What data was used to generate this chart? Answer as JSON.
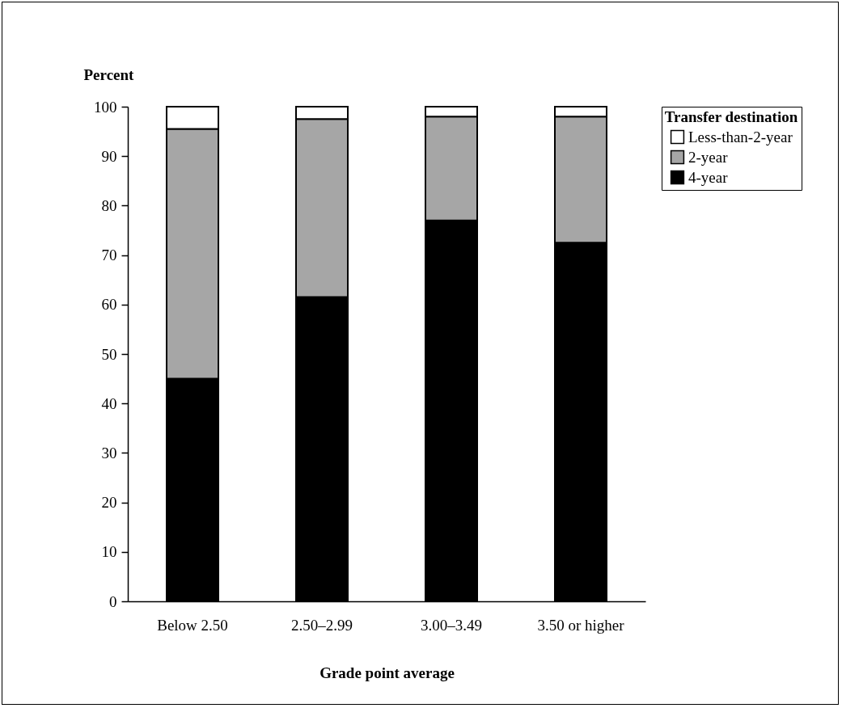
{
  "chart_data": {
    "type": "bar",
    "xlabel": "Grade point average",
    "ylabel": "Percent",
    "legend_title": "Transfer destination",
    "categories": [
      "Below 2.50",
      "2.50–2.99",
      "3.00–3.49",
      "3.50 or higher"
    ],
    "stacked": true,
    "ylim": [
      0,
      100
    ],
    "yticks": [
      0,
      10,
      20,
      30,
      40,
      50,
      60,
      70,
      80,
      90,
      100
    ],
    "legend": "right",
    "series": [
      {
        "name": "4-year",
        "color": "#000000",
        "values": [
          45,
          61.5,
          77,
          72.5
        ]
      },
      {
        "name": "2-year",
        "color": "#a6a6a6",
        "values": [
          50.5,
          36,
          21,
          25.5
        ]
      },
      {
        "name": "Less-than-2-year",
        "color": "#ffffff",
        "values": [
          4.5,
          2.5,
          2,
          2
        ]
      }
    ]
  }
}
